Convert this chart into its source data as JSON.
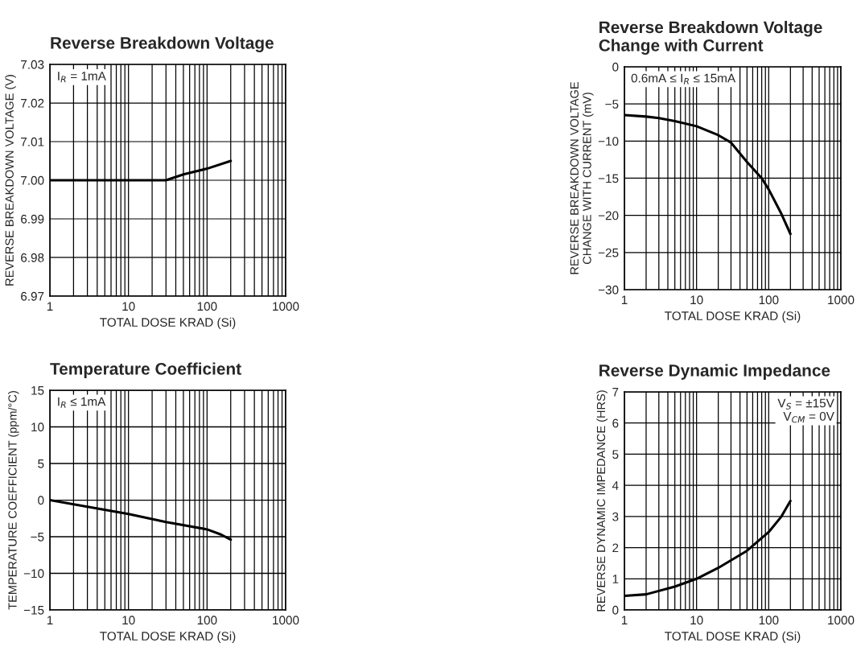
{
  "chart_data": [
    {
      "type": "line",
      "title": "Reverse Breakdown Voltage",
      "xlabel": "TOTAL DOSE KRAD (Si)",
      "ylabel": "REVERSE BREAKDOWN VOLTAGE (V)",
      "log": "x",
      "grid": true,
      "legend": false,
      "marker": "none",
      "line_style": "solid",
      "xlim": [
        1,
        1000
      ],
      "xticks": [
        1,
        10,
        100,
        1000
      ],
      "ylim": [
        6.97,
        7.03
      ],
      "yticks": [
        6.97,
        6.98,
        6.99,
        {
          "value": 7.0,
          "label": "7.00"
        },
        7.01,
        7.02,
        7.03
      ],
      "annotations": [
        "I$_{R}$ = 1mA"
      ],
      "series": [
        {
          "color": "#000000",
          "x": [
            1,
            10,
            30,
            50,
            100,
            200
          ],
          "values": [
            7.0,
            7.0,
            7.0,
            7.0015,
            7.003,
            7.005
          ]
        }
      ]
    },
    {
      "type": "line",
      "title": "Reverse Breakdown Voltage\nChange with Current",
      "xlabel": "TOTAL DOSE KRAD (Si)",
      "ylabel": "REVERSE BREAKDOWN VOLTAGE\nCHANGE WITH CURRENT (mV)",
      "log": "x",
      "grid": true,
      "legend": false,
      "marker": "none",
      "line_style": "solid",
      "xlim": [
        1,
        1000
      ],
      "xticks": [
        1,
        10,
        100,
        1000
      ],
      "ylim": [
        -30,
        0
      ],
      "yticks": [
        {
          "value": -30,
          "label": "−30"
        },
        {
          "value": -25,
          "label": "−25"
        },
        {
          "value": -20,
          "label": "−20"
        },
        {
          "value": -15,
          "label": "−15"
        },
        {
          "value": -10,
          "label": "−10"
        },
        {
          "value": -5,
          "label": "−5"
        },
        0
      ],
      "annotations": [
        "0.6mA ≤ I$_{R}$ ≤ 15mA"
      ],
      "series": [
        {
          "color": "#000000",
          "x": [
            1,
            2,
            3,
            5,
            10,
            20,
            30,
            50,
            80,
            100,
            150,
            200
          ],
          "values": [
            -6.5,
            -6.7,
            -6.9,
            -7.3,
            -8,
            -9.2,
            -10.2,
            -12.8,
            -15,
            -16.5,
            -19.8,
            -22.5
          ]
        }
      ]
    },
    {
      "type": "line",
      "title": "Temperature Coefficient",
      "xlabel": "TOTAL DOSE KRAD (Si)",
      "ylabel": "TEMPERATURE COEFFICIENT (ppm/°C)",
      "log": "x",
      "grid": true,
      "legend": false,
      "marker": "none",
      "line_style": "solid",
      "xlim": [
        1,
        1000
      ],
      "xticks": [
        1,
        10,
        100,
        1000
      ],
      "ylim": [
        -15,
        15
      ],
      "yticks": [
        {
          "value": -15,
          "label": "−15"
        },
        {
          "value": -10,
          "label": "−10"
        },
        {
          "value": -5,
          "label": "−5"
        },
        0,
        5,
        10,
        15
      ],
      "annotations": [
        "I$_{R}$ ≤ 1mA"
      ],
      "series": [
        {
          "color": "#000000",
          "x": [
            1,
            3,
            10,
            30,
            100,
            150,
            200
          ],
          "values": [
            0,
            -0.9,
            -1.9,
            -3,
            -4,
            -4.7,
            -5.4
          ]
        }
      ]
    },
    {
      "type": "line",
      "title": "Reverse Dynamic Impedance",
      "xlabel": "TOTAL DOSE KRAD (Si)",
      "ylabel": "REVERSE DYNAMIC IMPEDANCE (HRS)",
      "log": "x",
      "grid": true,
      "legend": false,
      "marker": "none",
      "line_style": "solid",
      "xlim": [
        1,
        1000
      ],
      "xticks": [
        1,
        10,
        100,
        1000
      ],
      "ylim": [
        0,
        7
      ],
      "yticks": [
        0,
        1,
        2,
        3,
        4,
        5,
        6,
        7
      ],
      "annotations": [
        "V$_{S}$ = ±15V\nV$_{CM}$ = 0V"
      ],
      "series": [
        {
          "color": "#000000",
          "x": [
            1,
            2,
            5,
            10,
            20,
            50,
            100,
            150,
            200
          ],
          "values": [
            0.45,
            0.5,
            0.75,
            1,
            1.35,
            1.9,
            2.5,
            3,
            3.5
          ]
        }
      ]
    }
  ]
}
